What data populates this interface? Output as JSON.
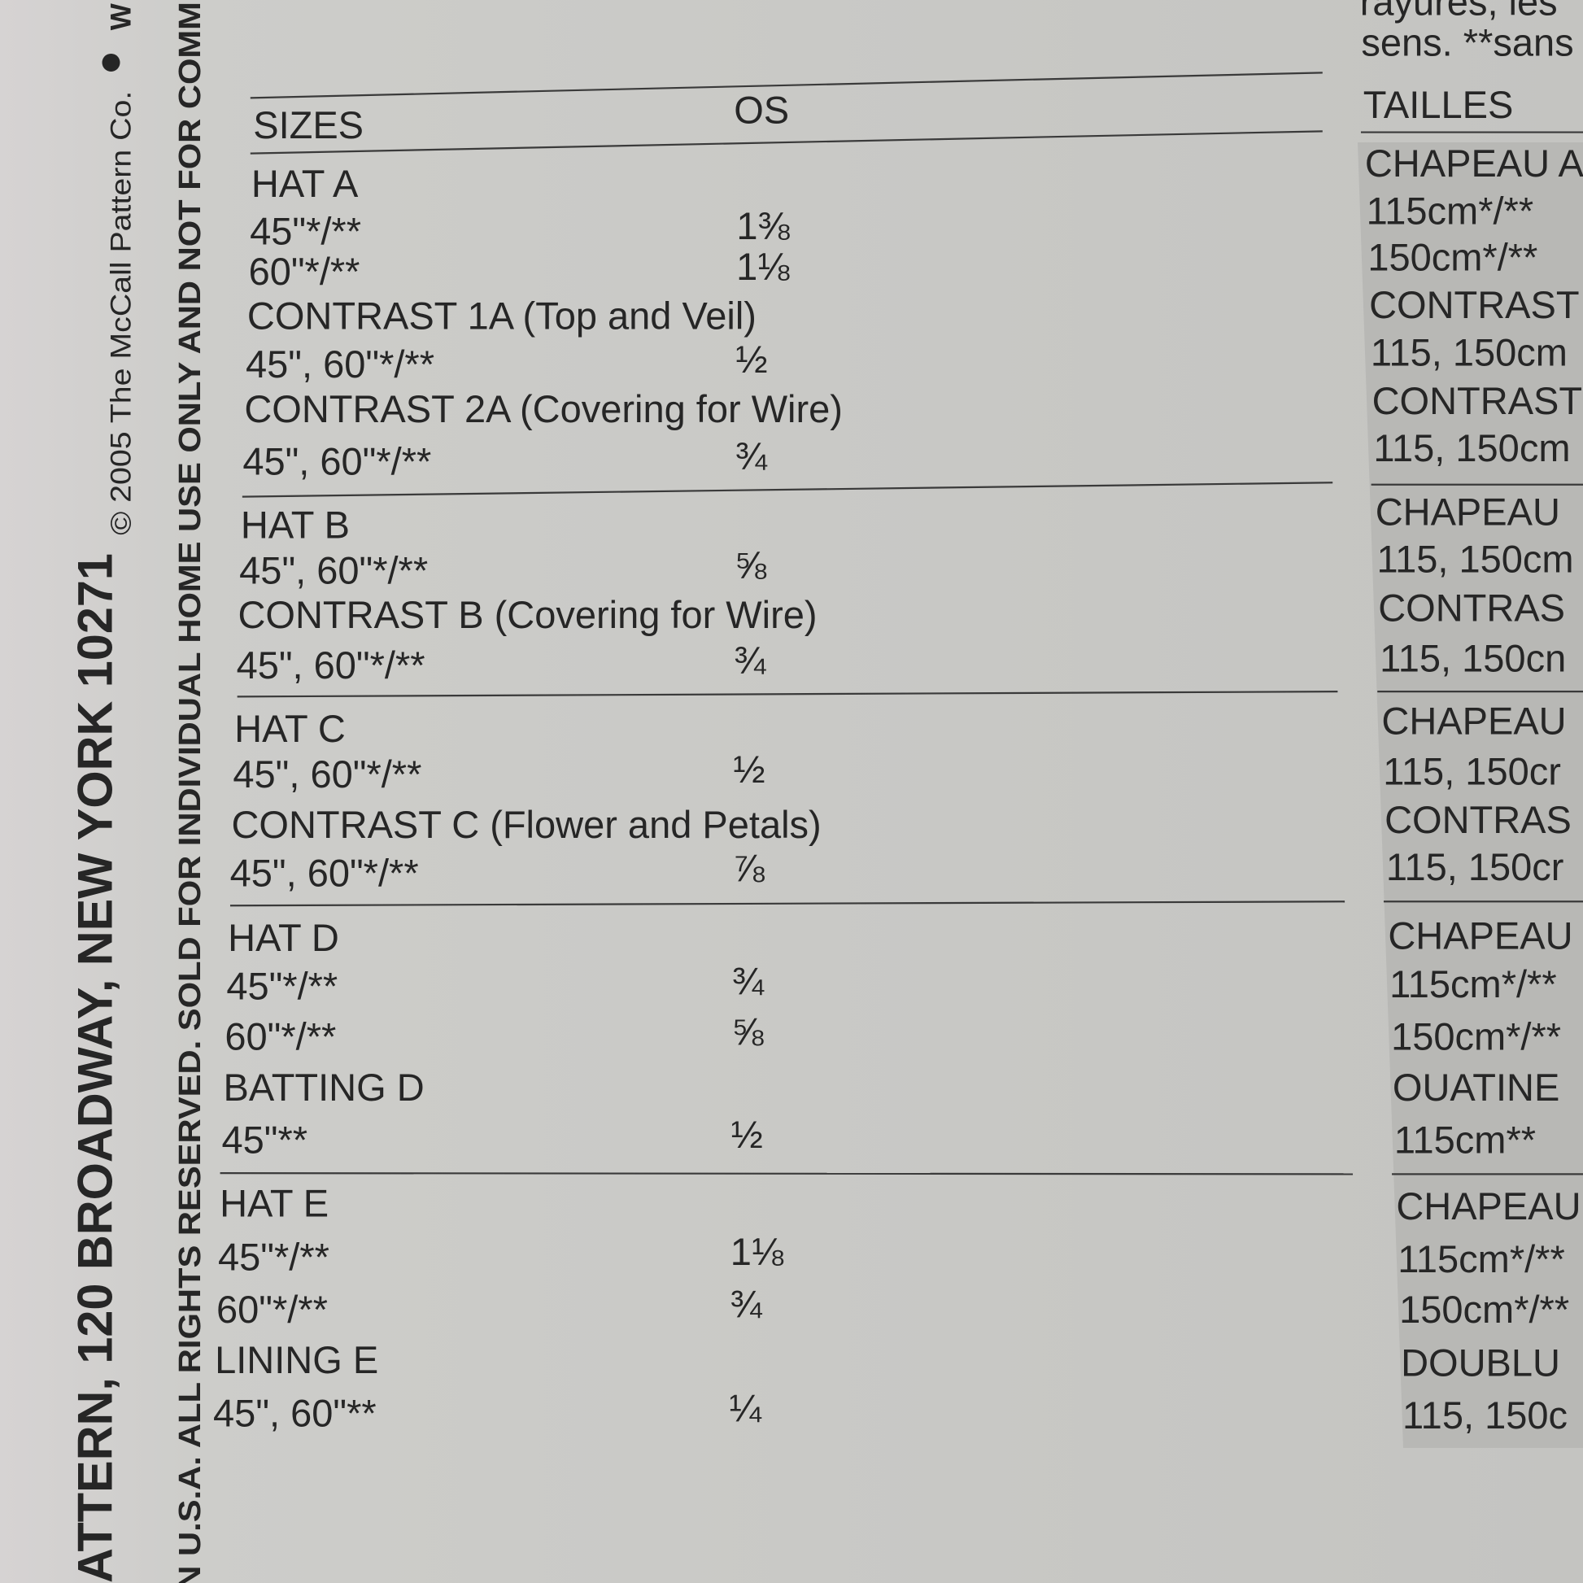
{
  "side_text": {
    "address": "ATTERN, 120 BROADWAY, NEW YORK 10271",
    "copyright": "© 2005 The McCall Pattern Co.",
    "edge": "W",
    "rights": "N U.S.A. ALL RIGHTS RESERVED. SOLD FOR INDIVIDUAL HOME USE ONLY AND NOT FOR COMMER"
  },
  "french_top": [
    "rayures, les",
    "sens. **sans"
  ],
  "table": {
    "header": [
      "SIZES",
      "OS"
    ],
    "groups": [
      {
        "rows": [
          [
            "HAT A"
          ],
          [
            "45\"*/**",
            "1⅜"
          ],
          [
            "60\"*/**",
            "1⅛"
          ],
          [
            "CONTRAST 1A (Top and Veil)"
          ],
          [
            "45\", 60\"*/**",
            "½"
          ],
          [
            "CONTRAST 2A (Covering for Wire)"
          ],
          [
            "45\", 60\"*/**",
            "¾"
          ]
        ]
      },
      {
        "rows": [
          [
            "HAT B"
          ],
          [
            "45\", 60\"*/**",
            "⅝"
          ],
          [
            "CONTRAST B (Covering for Wire)"
          ],
          [
            "45\", 60\"*/**",
            "¾"
          ]
        ]
      },
      {
        "rows": [
          [
            "HAT C"
          ],
          [
            "45\", 60\"*/**",
            "½"
          ],
          [
            "CONTRAST C (Flower and Petals)"
          ],
          [
            "45\", 60\"*/**",
            "⅞"
          ]
        ]
      },
      {
        "rows": [
          [
            "HAT D"
          ],
          [
            "45\"*/**",
            "¾"
          ],
          [
            "60\"*/**",
            "⅝"
          ],
          [
            "BATTING D"
          ],
          [
            "45\"**",
            "½"
          ]
        ]
      },
      {
        "rows": [
          [
            "HAT E"
          ],
          [
            "45\"*/**",
            "1⅛"
          ],
          [
            "60\"*/**",
            "¾"
          ],
          [
            "LINING E"
          ],
          [
            "45\", 60\"**",
            "¼"
          ]
        ]
      }
    ]
  },
  "french_table": {
    "header": "TAILLES",
    "groups": [
      [
        "CHAPEAU A",
        "115cm*/**",
        "150cm*/**",
        "CONTRAST",
        "115, 150cm",
        "CONTRAST",
        "115, 150cm"
      ],
      [
        "CHAPEAU",
        "115, 150cm",
        "CONTRAS",
        "115, 150cn"
      ],
      [
        "CHAPEAU",
        "115, 150cr",
        "CONTRAS",
        "115, 150cr"
      ],
      [
        "CHAPEAU",
        "115cm*/**",
        "150cm*/**",
        "OUATINE",
        "115cm**"
      ],
      [
        "CHAPEAU",
        "115cm*/**",
        "150cm*/**",
        "DOUBLU",
        "115, 150c"
      ]
    ]
  }
}
